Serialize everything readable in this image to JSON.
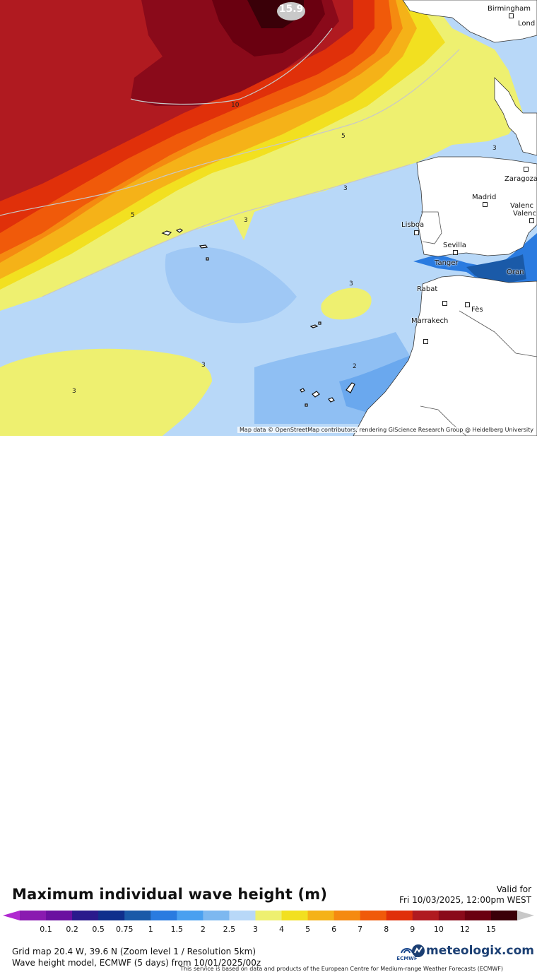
{
  "title": "Maximum individual wave height (m)",
  "valid_label": "Valid for",
  "valid_time": "Fri 10/03/2025, 12:00pm WEST",
  "attribution": "Map data © OpenStreetMap contributors, rendering GIScience Research Group @ Heidelberg University",
  "grid_info": "Grid map 20.4 W, 39.6 N (Zoom level 1 / Resolution 5km)",
  "model_info": "Wave height model, ECMWF (5 days) from 10/01/2025/00z",
  "disclaimer": "This service is based on data and products of the European Centre for Medium-range Weather Forecasts (ECMWF)",
  "brand": "meteologix.com",
  "ecmwf_label": "ECMWF",
  "max_value": "15.9",
  "scale": {
    "labels": [
      "0.1",
      "0.2",
      "0.5",
      "0.75",
      "1",
      "1.5",
      "2",
      "2.5",
      "3",
      "4",
      "5",
      "6",
      "7",
      "8",
      "9",
      "10",
      "12",
      "15"
    ],
    "colors": [
      "#8a1ab0",
      "#6b10a0",
      "#2a1a8c",
      "#0f2f8c",
      "#1a5aa8",
      "#2a7be0",
      "#4aa0f0",
      "#7db8f0",
      "#b8d8f8",
      "#eef070",
      "#f2e020",
      "#f5b218",
      "#f58a10",
      "#f05a0a",
      "#e0300a",
      "#b01a20",
      "#8a0a1a",
      "#6a0010",
      "#3a0008"
    ]
  },
  "cities": [
    {
      "name": "Birmingham"
    },
    {
      "name": "Lond"
    },
    {
      "name": "Zaragoza"
    },
    {
      "name": "Madrid"
    },
    {
      "name": "Valenc"
    },
    {
      "name": "Valenc"
    },
    {
      "name": "Lisboa"
    },
    {
      "name": "Sevilla"
    },
    {
      "name": "Tanger"
    },
    {
      "name": "Oran"
    },
    {
      "name": "Rabat"
    },
    {
      "name": "Fès"
    },
    {
      "name": "Marrakech"
    }
  ],
  "contour_labels": [
    "10",
    "5",
    "3",
    "3",
    "3",
    "3",
    "5",
    "3",
    "3",
    "2"
  ]
}
